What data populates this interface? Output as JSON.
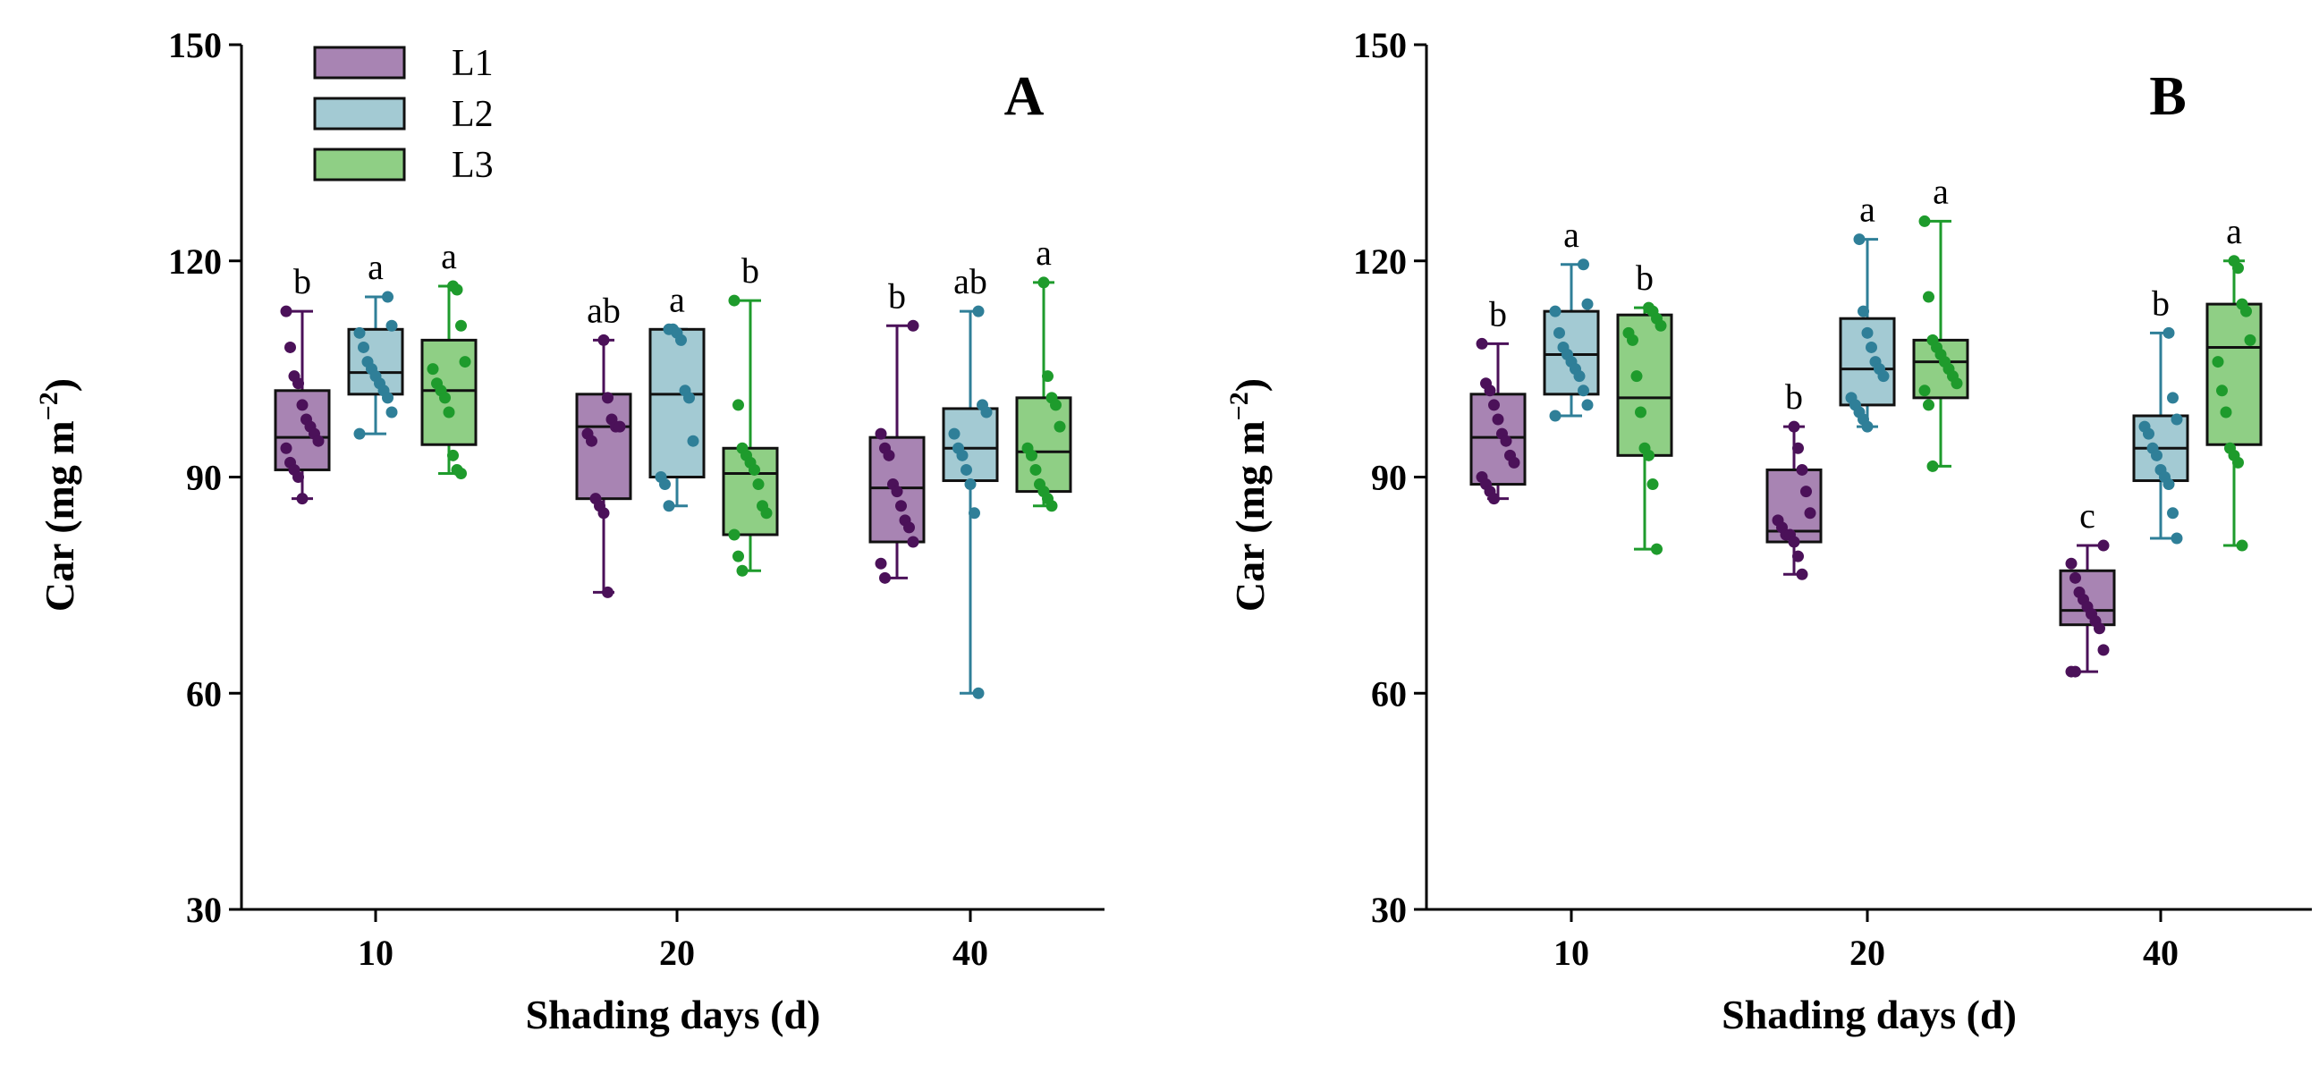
{
  "chart_data": [
    {
      "type": "box",
      "panel_label": "A",
      "xlabel": "Shading days (d)",
      "ylabel": "Car (mg m",
      "ylabel_exponent": "−2",
      "ylabel_close": ")",
      "ylim": [
        30,
        150
      ],
      "yticks": [
        "30",
        "60",
        "90",
        "120",
        "150"
      ],
      "categories": [
        "10",
        "20",
        "40"
      ],
      "legend": {
        "placement": "top-left",
        "entries": [
          "L1",
          "L2",
          "L3"
        ]
      },
      "series": [
        {
          "name": "L1",
          "color": "#4b1159",
          "fill": "#a884b3",
          "boxes": [
            {
              "min": 87,
              "q1": 91,
              "median": 95.5,
              "q3": 102,
              "max": 113,
              "letter": "b",
              "points": [
                113,
                108,
                104,
                103,
                100,
                98,
                97,
                96,
                95,
                94,
                92,
                91,
                90,
                87
              ]
            },
            {
              "min": 74,
              "q1": 87,
              "median": 97,
              "q3": 101.5,
              "max": 109,
              "letter": "ab",
              "points": [
                109,
                101,
                98,
                97,
                97,
                96,
                95,
                87,
                86,
                85,
                74
              ]
            },
            {
              "min": 76,
              "q1": 81,
              "median": 88.5,
              "q3": 95.5,
              "max": 111,
              "letter": "b",
              "points": [
                111,
                96,
                94,
                93,
                89,
                88,
                86,
                84,
                83,
                81,
                78,
                76
              ]
            }
          ]
        },
        {
          "name": "L2",
          "color": "#2f7f98",
          "fill": "#a3cad3",
          "boxes": [
            {
              "min": 96,
              "q1": 101.5,
              "median": 104.5,
              "q3": 110.5,
              "max": 115,
              "letter": "a",
              "points": [
                115,
                111,
                110,
                108,
                106,
                105,
                104,
                103,
                102,
                101,
                99,
                96
              ]
            },
            {
              "min": 86,
              "q1": 90,
              "median": 101.5,
              "q3": 110.5,
              "max": 110.5,
              "letter": "a",
              "points": [
                110.5,
                110.5,
                110,
                109,
                102,
                101,
                95,
                90,
                89,
                86
              ]
            },
            {
              "min": 60,
              "q1": 89.5,
              "median": 94,
              "q3": 99.5,
              "max": 113,
              "letter": "ab",
              "points": [
                113,
                100,
                99,
                96,
                94,
                93,
                91,
                89,
                85,
                60
              ]
            }
          ]
        },
        {
          "name": "L3",
          "color": "#1e9b2c",
          "fill": "#8fcf85",
          "boxes": [
            {
              "min": 90.5,
              "q1": 94.5,
              "median": 102,
              "q3": 109,
              "max": 116.5,
              "letter": "a",
              "points": [
                116.5,
                116,
                111,
                106,
                105,
                103,
                102,
                101,
                99,
                93,
                91,
                90.5
              ]
            },
            {
              "min": 77,
              "q1": 82,
              "median": 90.5,
              "q3": 94,
              "max": 114.5,
              "letter": "b",
              "points": [
                114.5,
                100,
                94,
                93,
                92,
                91,
                89,
                86,
                85,
                82,
                79,
                77
              ]
            },
            {
              "min": 86,
              "q1": 88,
              "median": 93.5,
              "q3": 101,
              "max": 117,
              "letter": "a",
              "points": [
                117,
                104,
                101,
                100,
                97,
                94,
                93,
                91,
                89,
                88,
                87,
                86
              ]
            }
          ]
        }
      ]
    },
    {
      "type": "box",
      "panel_label": "B",
      "xlabel": "Shading days (d)",
      "ylabel": "Car (mg m",
      "ylabel_exponent": "−2",
      "ylabel_close": ")",
      "ylim": [
        30,
        150
      ],
      "yticks": [
        "30",
        "60",
        "90",
        "120",
        "150"
      ],
      "categories": [
        "10",
        "20",
        "40"
      ],
      "series": [
        {
          "name": "L1",
          "color": "#4b1159",
          "fill": "#a884b3",
          "boxes": [
            {
              "min": 87,
              "q1": 89,
              "median": 95.5,
              "q3": 101.5,
              "max": 108.5,
              "letter": "b",
              "points": [
                108.5,
                103,
                102,
                100,
                98,
                96,
                95,
                93,
                92,
                90,
                89,
                88,
                87
              ]
            },
            {
              "min": 76.5,
              "q1": 81,
              "median": 82.5,
              "q3": 91,
              "max": 97,
              "letter": "b",
              "points": [
                97,
                94,
                91,
                88,
                85,
                84,
                83,
                82,
                82,
                81,
                79,
                76.5
              ]
            },
            {
              "min": 63,
              "q1": 69.5,
              "median": 71.5,
              "q3": 77,
              "max": 80.5,
              "letter": "c",
              "points": [
                80.5,
                78,
                76,
                74,
                73,
                72,
                71,
                70,
                69,
                66,
                63,
                63
              ]
            }
          ]
        },
        {
          "name": "L2",
          "color": "#2f7f98",
          "fill": "#a3cad3",
          "boxes": [
            {
              "min": 98.5,
              "q1": 101.5,
              "median": 107,
              "q3": 113,
              "max": 119.5,
              "letter": "a",
              "points": [
                119.5,
                114,
                113,
                110,
                108,
                107,
                106,
                105,
                104,
                102,
                100,
                98.5
              ]
            },
            {
              "min": 97,
              "q1": 100,
              "median": 105,
              "q3": 112,
              "max": 123,
              "letter": "a",
              "points": [
                123,
                113,
                110,
                108,
                106,
                105,
                104,
                101,
                100,
                99,
                98,
                97
              ]
            },
            {
              "min": 81.5,
              "q1": 89.5,
              "median": 94,
              "q3": 98.5,
              "max": 110,
              "letter": "b",
              "points": [
                110,
                101,
                98,
                97,
                96,
                94,
                93,
                91,
                90,
                89,
                85,
                81.5
              ]
            }
          ]
        },
        {
          "name": "L3",
          "color": "#1e9b2c",
          "fill": "#8fcf85",
          "boxes": [
            {
              "min": 80,
              "q1": 93,
              "median": 101,
              "q3": 112.5,
              "max": 113.5,
              "letter": "b",
              "points": [
                113.5,
                113,
                112,
                111,
                110,
                109,
                104,
                99,
                94,
                93,
                89,
                80
              ]
            },
            {
              "min": 91.5,
              "q1": 101,
              "median": 106,
              "q3": 109,
              "max": 125.5,
              "letter": "a",
              "points": [
                125.5,
                115,
                109,
                108,
                107,
                106,
                105,
                104,
                103,
                102,
                100,
                91.5
              ]
            },
            {
              "min": 80.5,
              "q1": 94.5,
              "median": 108,
              "q3": 114,
              "max": 120,
              "letter": "a",
              "points": [
                120,
                119,
                114,
                113,
                109,
                106,
                102,
                99,
                94,
                93,
                92,
                80.5
              ]
            }
          ]
        }
      ]
    }
  ]
}
